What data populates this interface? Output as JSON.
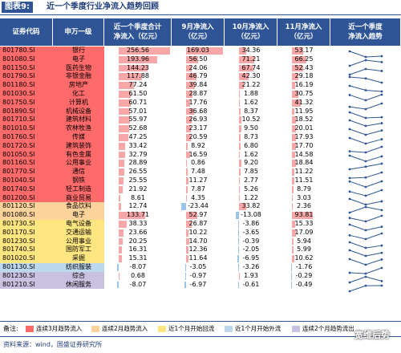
{
  "title": {
    "tag": "图表9:",
    "text": "近一个季度行业净流入趋势回顾"
  },
  "headers": [
    "证券代码",
    "申万一级",
    "近一个季度合计\n净流入（亿元）",
    "9月净流入\n（亿元）",
    "10月净流入\n（亿元）",
    "11月净流入\n（亿元）",
    "近一个季度\n净流入趋势"
  ],
  "colors": {
    "red": "#ff6b6b",
    "orange": "#fcd39a",
    "yellow": "#ffe680",
    "lightblue": "#bdd7ee",
    "lavender": "#c9c1e0",
    "header": "#2f5597",
    "white": "#ffffff"
  },
  "rows": [
    {
      "code": "801780.SI",
      "name": "银行",
      "total": "256.56",
      "m9": "169.03",
      "m10": "34.36",
      "m11": "53.17",
      "cat": "red"
    },
    {
      "code": "801080.SI",
      "name": "电子",
      "total": "193.96",
      "m9": "56.50",
      "m10": "71.21",
      "m11": "66.25",
      "cat": "red"
    },
    {
      "code": "801150.SI",
      "name": "医药生物",
      "total": "144.23",
      "m9": "24.06",
      "m10": "67.74",
      "m11": "52.43",
      "cat": "red"
    },
    {
      "code": "801790.SI",
      "name": "非银金融",
      "total": "117.88",
      "m9": "46.79",
      "m10": "42.30",
      "m11": "29.18",
      "cat": "red"
    },
    {
      "code": "801180.SI",
      "name": "房地产",
      "total": "77.24",
      "m9": "39.84",
      "m10": "21.22",
      "m11": "16.19",
      "cat": "red"
    },
    {
      "code": "801030.SI",
      "name": "化工",
      "total": "61.50",
      "m9": "28.87",
      "m10": "1.88",
      "m11": "30.75",
      "cat": "red"
    },
    {
      "code": "801750.SI",
      "name": "计算机",
      "total": "60.71",
      "m9": "17.76",
      "m10": "1.62",
      "m11": "41.32",
      "cat": "red"
    },
    {
      "code": "801890.SI",
      "name": "机械设备",
      "total": "57.01",
      "m9": "36.68",
      "m10": "8.37",
      "m11": "11.95",
      "cat": "red"
    },
    {
      "code": "801710.SI",
      "name": "建筑材料",
      "total": "55.97",
      "m9": "26.93",
      "m10": "10.52",
      "m11": "18.52",
      "cat": "red"
    },
    {
      "code": "801010.SI",
      "name": "农林牧渔",
      "total": "52.68",
      "m9": "23.17",
      "m10": "9.50",
      "m11": "20.01",
      "cat": "red"
    },
    {
      "code": "801760.SI",
      "name": "传媒",
      "total": "47.25",
      "m9": "20.59",
      "m10": "8.73",
      "m11": "17.93",
      "cat": "red"
    },
    {
      "code": "801720.SI",
      "name": "建筑装饰",
      "total": "33.42",
      "m9": "8.92",
      "m10": "6.80",
      "m11": "17.70",
      "cat": "red"
    },
    {
      "code": "801050.SI",
      "name": "有色金属",
      "total": "32.79",
      "m9": "16.59",
      "m10": "1.62",
      "m11": "14.58",
      "cat": "red"
    },
    {
      "code": "801160.SI",
      "name": "公用事业",
      "total": "28.89",
      "m9": "0.86",
      "m10": "9.20",
      "m11": "18.84",
      "cat": "red"
    },
    {
      "code": "801770.SI",
      "name": "通信",
      "total": "26.55",
      "m9": "7.48",
      "m10": "7.85",
      "m11": "11.22",
      "cat": "red"
    },
    {
      "code": "801040.SI",
      "name": "钢铁",
      "total": "25.55",
      "m9": "11.27",
      "m10": "2.77",
      "m11": "11.51",
      "cat": "red"
    },
    {
      "code": "801740.SI",
      "name": "轻工制造",
      "total": "21.92",
      "m9": "7.87",
      "m10": "5.26",
      "m11": "8.79",
      "cat": "red"
    },
    {
      "code": "801200.SI",
      "name": "商业贸易",
      "total": "8.61",
      "m9": "4.35",
      "m10": "1.22",
      "m11": "3.03",
      "cat": "red"
    },
    {
      "code": "801120.SI",
      "name": "食品饮料",
      "total": "12.74",
      "m9": "-23.44",
      "m10": "33.82",
      "m11": "2.36",
      "cat": "orange"
    },
    {
      "code": "801080.SI",
      "name": "电子",
      "total": "133.71",
      "m9": "52.97",
      "m10": "-13.08",
      "m11": "93.81",
      "cat": "orange"
    },
    {
      "code": "801730.SI",
      "name": "电气设备",
      "total": "38.33",
      "m9": "26.87",
      "m10": "-3.86",
      "m11": "15.33",
      "cat": "yellow"
    },
    {
      "code": "801170.SI",
      "name": "交通运输",
      "total": "23.66",
      "m9": "10.22",
      "m10": "-3.65",
      "m11": "17.09",
      "cat": "yellow"
    },
    {
      "code": "801230.SI",
      "name": "公用事业",
      "total": "20.25",
      "m9": "14.70",
      "m10": "-0.39",
      "m11": "5.94",
      "cat": "yellow"
    },
    {
      "code": "801740.SI",
      "name": "国防军工",
      "total": "16.31",
      "m9": "12.36",
      "m10": "-2.05",
      "m11": "5.99",
      "cat": "yellow"
    },
    {
      "code": "801020.SI",
      "name": "采掘",
      "total": "15.31",
      "m9": "11.64",
      "m10": "-6.95",
      "m11": "10.62",
      "cat": "yellow"
    },
    {
      "code": "801130.SI",
      "name": "纺织服装",
      "total": "-8.07",
      "m9": "-3.05",
      "m10": "-3.26",
      "m11": "-1.76",
      "cat": "lightblue"
    },
    {
      "code": "801230.SI",
      "name": "综合",
      "total": "0.68",
      "m9": "-0.97",
      "m10": "1.93",
      "m11": "-0.29",
      "cat": "lavender"
    },
    {
      "code": "801210.SI",
      "name": "休闲服务",
      "total": "-8.07",
      "m9": "-6.97",
      "m10": "-0.61",
      "m11": "-0.49",
      "cat": "lavender"
    }
  ],
  "legend": {
    "label": "备注:",
    "items": [
      {
        "text": "连续3月趋势流入",
        "color": "#ff6b6b"
      },
      {
        "text": "连续2月趋势流入",
        "color": "#fcd39a"
      },
      {
        "text": "近1个月开始回流",
        "color": "#ffe680"
      },
      {
        "text": "近1个月开始外流",
        "color": "#bdd7ee"
      },
      {
        "text": "连续2个月趋势流出",
        "color": "#c9c1e0"
      }
    ]
  },
  "source": "资料来源：wind，国盛证券研究所",
  "watermark": "宽维后势"
}
